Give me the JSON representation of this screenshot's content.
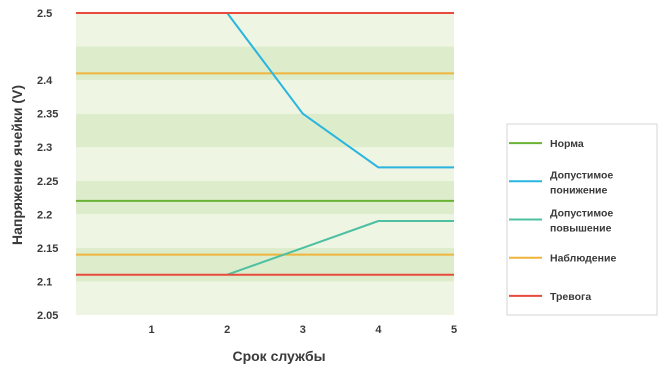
{
  "chart_data": {
    "type": "line",
    "xlabel": "Срок службы",
    "ylabel": "Напряжение ячейки (V)",
    "xlim": [
      0,
      5
    ],
    "ylim": [
      2.05,
      2.5
    ],
    "x_ticks": [
      "1",
      "2",
      "3",
      "4",
      "5"
    ],
    "x_tick_values": [
      1,
      2,
      3,
      4,
      5
    ],
    "y_ticks": [
      "2.05",
      "2.1",
      "2.15",
      "2.2",
      "2.25",
      "2.3",
      "2.35",
      "2.4",
      "2.5"
    ],
    "y_tick_values": [
      2.05,
      2.1,
      2.15,
      2.2,
      2.25,
      2.3,
      2.35,
      2.4,
      2.5
    ],
    "background_bands": {
      "colors": [
        "#eef5e2",
        "#ddedcc"
      ],
      "band_height": 0.05
    },
    "legend_position": "right",
    "series": [
      {
        "name": "Норма",
        "color": "#6ab234",
        "x": [
          0,
          5
        ],
        "y": [
          2.22,
          2.22
        ]
      },
      {
        "name": "Допустимое понижение",
        "color": "#29b5e0",
        "x": [
          2,
          3,
          4,
          5
        ],
        "y": [
          2.5,
          2.35,
          2.27,
          2.27
        ]
      },
      {
        "name": "Допустимое повышение",
        "color": "#4cc0a0",
        "x": [
          2,
          3,
          4,
          5
        ],
        "y": [
          2.11,
          2.15,
          2.19,
          2.19
        ]
      },
      {
        "name": "Наблюдение",
        "color": "#f0b43c",
        "x": [
          0,
          5
        ],
        "y": [
          2.14,
          2.14
        ],
        "x2": [
          0,
          5
        ],
        "y2": [
          2.41,
          2.41
        ]
      },
      {
        "name": "Тревога",
        "color": "#e64b3c",
        "x": [
          0,
          5
        ],
        "y": [
          2.11,
          2.11
        ],
        "x2": [
          0,
          5
        ],
        "y2": [
          2.5,
          2.5
        ]
      }
    ]
  }
}
